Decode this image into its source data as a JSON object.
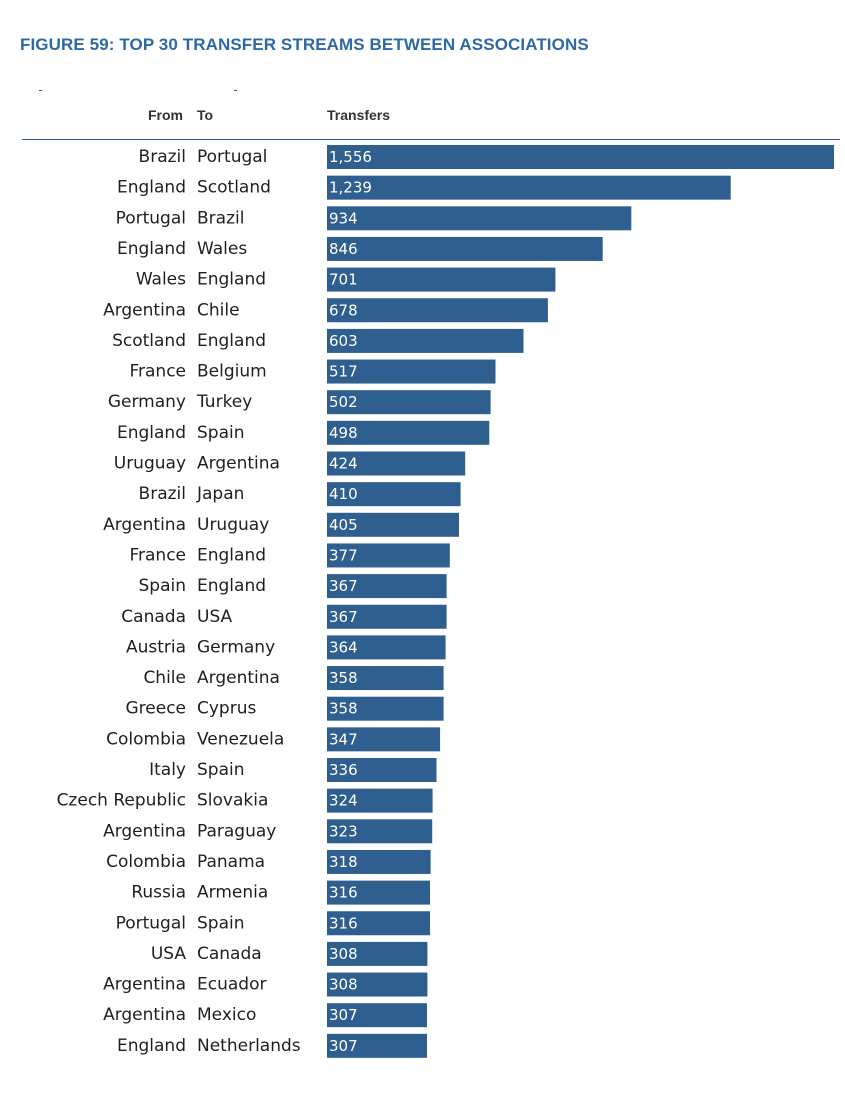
{
  "figure_title": "FIGURE 59: TOP 30 TRANSFER STREAMS BETWEEN ASSOCIATIONS",
  "headers": {
    "from": "From",
    "to": "To",
    "value": "Transfers"
  },
  "colors": {
    "title": "#2d6aa3",
    "bar": "#2f5f8e",
    "rule": "#2f5f8e",
    "text": "#1f1f1f",
    "value_text": "#ffffff"
  },
  "chart_data": {
    "type": "bar",
    "orientation": "horizontal",
    "title": "FIGURE 59: TOP 30 TRANSFER STREAMS BETWEEN ASSOCIATIONS",
    "xlabel": "Transfers",
    "xlim": [
      0,
      1556
    ],
    "grid": false,
    "rows": [
      {
        "from": "Brazil",
        "to": "Portugal",
        "value": 1556,
        "label": "1,556"
      },
      {
        "from": "England",
        "to": "Scotland",
        "value": 1239,
        "label": "1,239"
      },
      {
        "from": "Portugal",
        "to": "Brazil",
        "value": 934,
        "label": "934"
      },
      {
        "from": "England",
        "to": "Wales",
        "value": 846,
        "label": "846"
      },
      {
        "from": "Wales",
        "to": "England",
        "value": 701,
        "label": "701"
      },
      {
        "from": "Argentina",
        "to": "Chile",
        "value": 678,
        "label": "678"
      },
      {
        "from": "Scotland",
        "to": "England",
        "value": 603,
        "label": "603"
      },
      {
        "from": "France",
        "to": "Belgium",
        "value": 517,
        "label": "517"
      },
      {
        "from": "Germany",
        "to": "Turkey",
        "value": 502,
        "label": "502"
      },
      {
        "from": "England",
        "to": "Spain",
        "value": 498,
        "label": "498"
      },
      {
        "from": "Uruguay",
        "to": "Argentina",
        "value": 424,
        "label": "424"
      },
      {
        "from": "Brazil",
        "to": "Japan",
        "value": 410,
        "label": "410"
      },
      {
        "from": "Argentina",
        "to": "Uruguay",
        "value": 405,
        "label": "405"
      },
      {
        "from": "France",
        "to": "England",
        "value": 377,
        "label": "377"
      },
      {
        "from": "Spain",
        "to": "England",
        "value": 367,
        "label": "367"
      },
      {
        "from": "Canada",
        "to": "USA",
        "value": 367,
        "label": "367"
      },
      {
        "from": "Austria",
        "to": "Germany",
        "value": 364,
        "label": "364"
      },
      {
        "from": "Chile",
        "to": "Argentina",
        "value": 358,
        "label": "358"
      },
      {
        "from": "Greece",
        "to": "Cyprus",
        "value": 358,
        "label": "358"
      },
      {
        "from": "Colombia",
        "to": "Venezuela",
        "value": 347,
        "label": "347"
      },
      {
        "from": "Italy",
        "to": "Spain",
        "value": 336,
        "label": "336"
      },
      {
        "from": "Czech Republic",
        "to": "Slovakia",
        "value": 324,
        "label": "324"
      },
      {
        "from": "Argentina",
        "to": "Paraguay",
        "value": 323,
        "label": "323"
      },
      {
        "from": "Colombia",
        "to": "Panama",
        "value": 318,
        "label": "318"
      },
      {
        "from": "Russia",
        "to": "Armenia",
        "value": 316,
        "label": "316"
      },
      {
        "from": "Portugal",
        "to": "Spain",
        "value": 316,
        "label": "316"
      },
      {
        "from": "USA",
        "to": "Canada",
        "value": 308,
        "label": "308"
      },
      {
        "from": "Argentina",
        "to": "Ecuador",
        "value": 308,
        "label": "308"
      },
      {
        "from": "Argentina",
        "to": "Mexico",
        "value": 307,
        "label": "307"
      },
      {
        "from": "England",
        "to": "Netherlands",
        "value": 307,
        "label": "307"
      }
    ]
  }
}
